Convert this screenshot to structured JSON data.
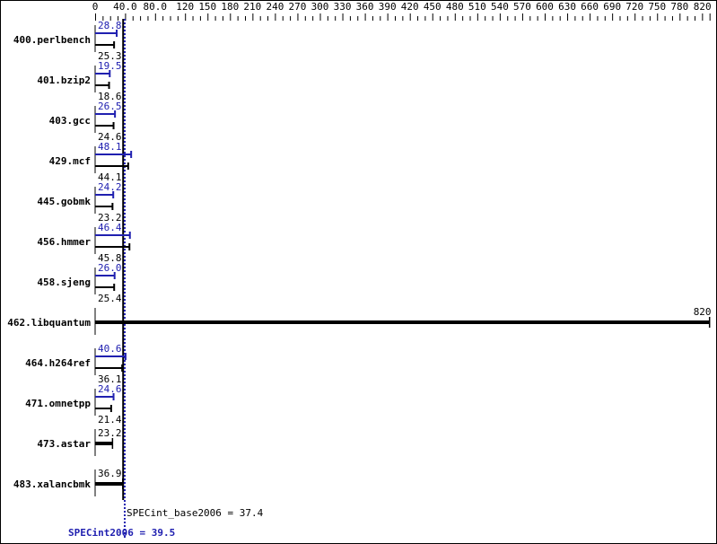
{
  "chart_data": {
    "type": "bar",
    "orientation": "horizontal",
    "xlim": [
      0,
      820
    ],
    "x_tick_labels": [
      "0",
      "40.0",
      "80.0",
      "120",
      "150",
      "180",
      "210",
      "240",
      "270",
      "300",
      "330",
      "360",
      "390",
      "420",
      "450",
      "480",
      "510",
      "540",
      "570",
      "600",
      "630",
      "660",
      "690",
      "720",
      "750",
      "780",
      "820"
    ],
    "x_tick_values": [
      0,
      40,
      80,
      120,
      150,
      180,
      210,
      240,
      270,
      300,
      330,
      360,
      390,
      420,
      450,
      480,
      510,
      540,
      570,
      600,
      630,
      660,
      690,
      720,
      750,
      780,
      820
    ],
    "categories": [
      "400.perlbench",
      "401.bzip2",
      "403.gcc",
      "429.mcf",
      "445.gobmk",
      "456.hmmer",
      "458.sjeng",
      "462.libquantum",
      "464.h264ref",
      "471.omnetpp",
      "473.astar",
      "483.xalancbmk"
    ],
    "series": [
      {
        "key": "peak",
        "color": "#2020b0",
        "values": [
          28.8,
          19.5,
          26.5,
          48.1,
          24.2,
          46.4,
          26.0,
          null,
          40.6,
          24.6,
          null,
          null
        ],
        "labels": [
          "28.8",
          "19.5",
          "26.5",
          "48.1",
          "24.2",
          "46.4",
          "26.0",
          null,
          "40.6",
          "24.6",
          null,
          null
        ]
      },
      {
        "key": "base",
        "color": "#000000",
        "values": [
          25.3,
          18.6,
          24.6,
          44.1,
          23.2,
          45.8,
          25.4,
          820,
          36.1,
          21.4,
          23.2,
          36.9
        ],
        "labels": [
          "25.3",
          "18.6",
          "24.6",
          "44.1",
          "23.2",
          "45.8",
          "25.4",
          "820",
          "36.1",
          "21.4",
          "23.2",
          "36.9"
        ]
      }
    ],
    "summary": {
      "base_value": 37.4,
      "base_label": "SPECint_base2006 = 37.4",
      "base_color": "#000000",
      "peak_value": 39.5,
      "peak_label": "SPECint2006 = 39.5",
      "peak_color": "#2020b0"
    }
  }
}
